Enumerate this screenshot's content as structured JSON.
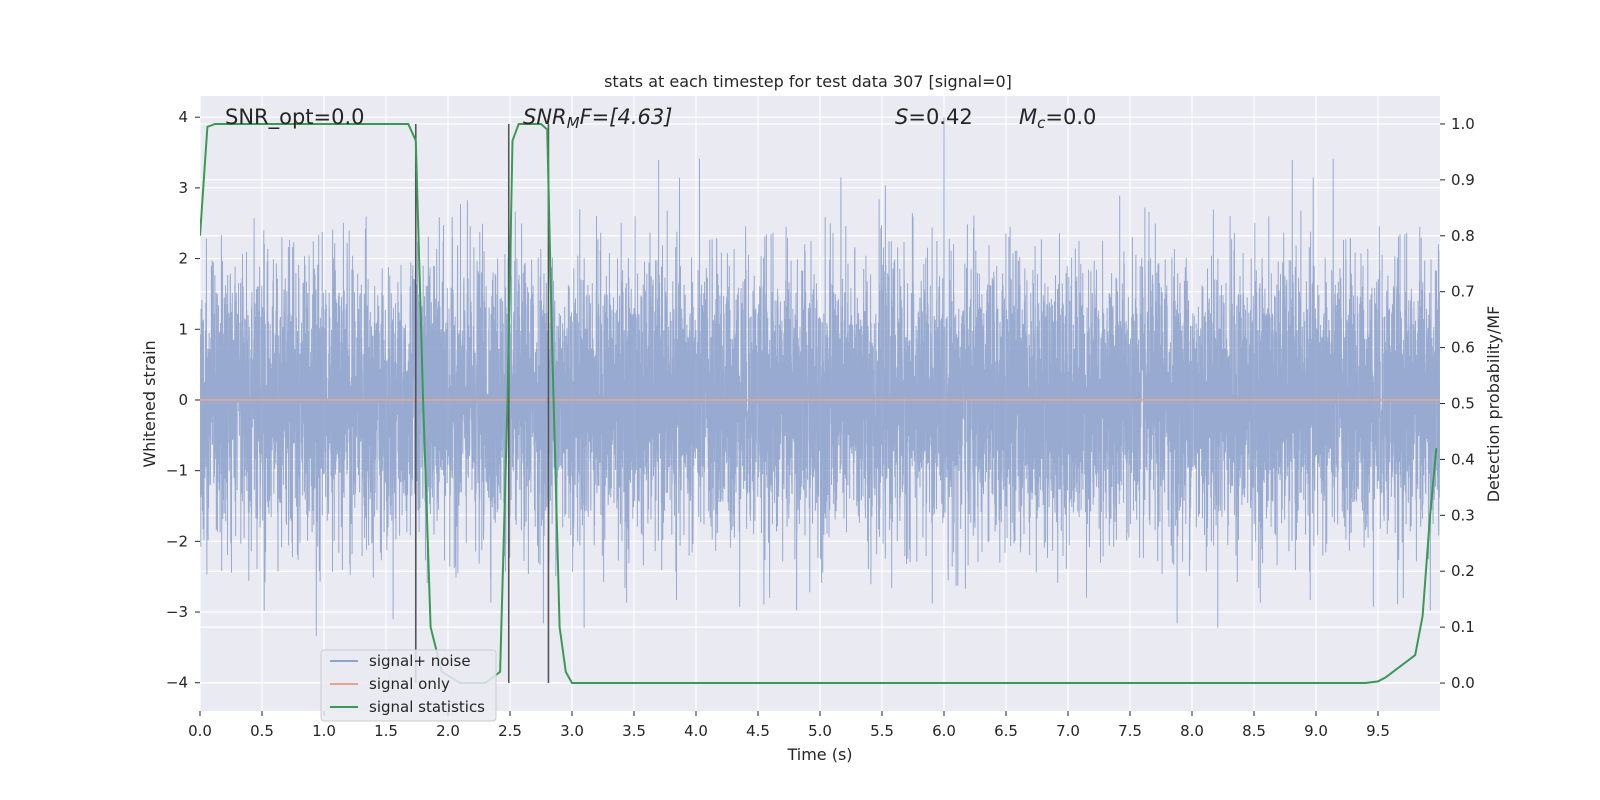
{
  "chart_data": {
    "type": "line",
    "title": "stats at each timestep for test data 307 [signal=0]",
    "xlabel": "Time (s)",
    "ylabel_left": "Whitened strain",
    "ylabel_right": "Detection probability/MF",
    "xlim": [
      0.0,
      10.0
    ],
    "ylim_left": [
      -4.4,
      4.3
    ],
    "ylim_right": [
      -0.05,
      1.05
    ],
    "x_ticks": [
      "0.0",
      "0.5",
      "1.0",
      "1.5",
      "2.0",
      "2.5",
      "3.0",
      "3.5",
      "4.0",
      "4.5",
      "5.0",
      "5.5",
      "6.0",
      "6.5",
      "7.0",
      "7.5",
      "8.0",
      "8.5",
      "9.0",
      "9.5"
    ],
    "x_tick_values": [
      0.0,
      0.5,
      1.0,
      1.5,
      2.0,
      2.5,
      3.0,
      3.5,
      4.0,
      4.5,
      5.0,
      5.5,
      6.0,
      6.5,
      7.0,
      7.5,
      8.0,
      8.5,
      9.0,
      9.5
    ],
    "y_left_ticks": [
      "4",
      "3",
      "2",
      "1",
      "0",
      "−1",
      "−2",
      "−3",
      "−4"
    ],
    "y_left_tick_values": [
      4,
      3,
      2,
      1,
      0,
      -1,
      -2,
      -3,
      -4
    ],
    "y_right_ticks": [
      "1.0",
      "0.9",
      "0.8",
      "0.7",
      "0.6",
      "0.5",
      "0.4",
      "0.3",
      "0.2",
      "0.1",
      "0.0"
    ],
    "y_right_tick_values": [
      1.0,
      0.9,
      0.8,
      0.7,
      0.6,
      0.5,
      0.4,
      0.3,
      0.2,
      0.1,
      0.0
    ],
    "grid": true,
    "legend_position": "lower-left",
    "annotations": {
      "snr_opt": "SNR_opt=0.0",
      "snr_mf_label": "SNR",
      "snr_mf_sub": "M",
      "snr_mf_tail": "F=[4.63]",
      "s_label": "S",
      "s_tail": "=0.42",
      "mc_label": "M",
      "mc_sub": "c",
      "mc_tail": "=0.0"
    },
    "vertical_markers": [
      1.74,
      2.49,
      2.81
    ],
    "series": [
      {
        "name": "signal+ noise",
        "axis": "left",
        "color": "#8fa3cc",
        "kind": "noise",
        "typical_amplitude": 2.0,
        "peak_amplitude": 4.0,
        "sample_rate_hz": 1024
      },
      {
        "name": "signal only",
        "axis": "left",
        "color": "#e8a48a",
        "x": [
          0.0,
          10.0
        ],
        "y": [
          0.0,
          0.0
        ]
      },
      {
        "name": "signal statistics",
        "axis": "right",
        "color": "#3a9a55",
        "x": [
          0.0,
          0.06,
          0.12,
          0.3,
          0.6,
          1.0,
          1.4,
          1.68,
          1.74,
          1.8,
          1.86,
          1.95,
          2.1,
          2.3,
          2.42,
          2.48,
          2.52,
          2.57,
          2.65,
          2.75,
          2.8,
          2.84,
          2.9,
          2.95,
          3.0,
          3.5,
          4.0,
          5.0,
          6.0,
          7.0,
          8.0,
          9.0,
          9.4,
          9.5,
          9.56,
          9.62,
          9.68,
          9.74,
          9.8,
          9.86,
          9.92,
          9.97
        ],
        "y": [
          0.8,
          0.995,
          1.0,
          1.0,
          1.0,
          1.0,
          1.0,
          1.0,
          0.97,
          0.5,
          0.1,
          0.02,
          0.0,
          0.0,
          0.02,
          0.5,
          0.97,
          1.0,
          1.0,
          1.0,
          0.99,
          0.6,
          0.1,
          0.02,
          0.0,
          0.0,
          0.0,
          0.0,
          0.0,
          0.0,
          0.0,
          0.0,
          0.0,
          0.003,
          0.01,
          0.02,
          0.03,
          0.04,
          0.05,
          0.12,
          0.3,
          0.42
        ]
      }
    ]
  }
}
